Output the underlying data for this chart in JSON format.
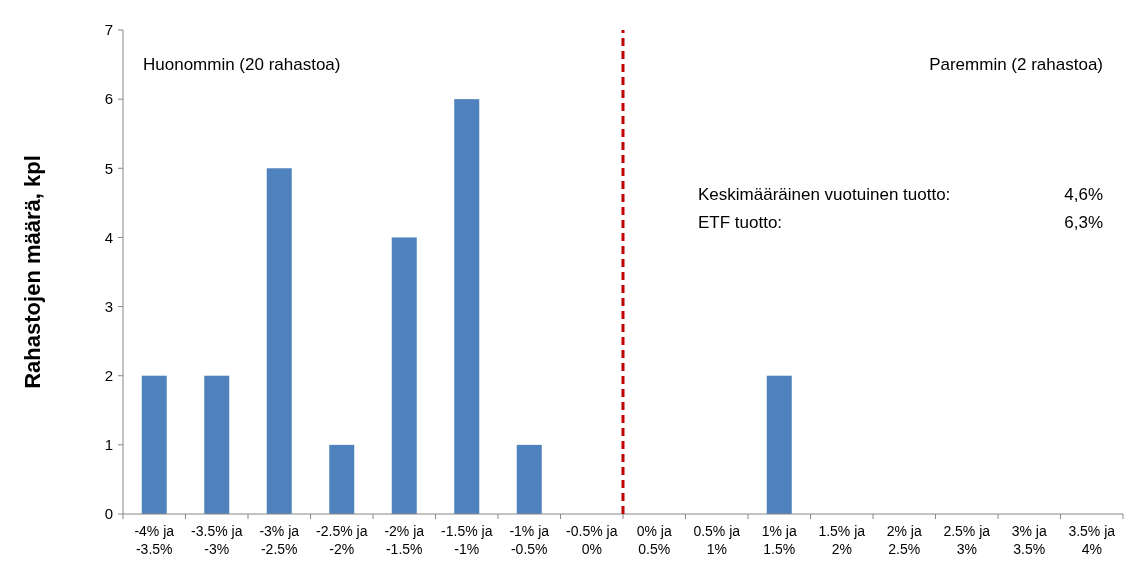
{
  "chart_data": {
    "type": "bar",
    "ylabel": "Rahastojen määrä, kpl",
    "categories": [
      "-4% ja -3.5%",
      "-3.5% ja -3%",
      "-3% ja -2.5%",
      "-2.5% ja -2%",
      "-2% ja -1.5%",
      "-1.5% ja -1%",
      "-1% ja -0.5%",
      "-0.5% ja 0%",
      "0% ja 0.5%",
      "0.5% ja 1%",
      "1% ja 1.5%",
      "1.5% ja 2%",
      "2% ja 2.5%",
      "2.5% ja 3%",
      "3% ja 3.5%",
      "3.5% ja 4%"
    ],
    "values": [
      2,
      2,
      5,
      1,
      4,
      6,
      1,
      0,
      0,
      0,
      2,
      0,
      0,
      0,
      0,
      0
    ],
    "color": "#4f81bd",
    "ylim": [
      0,
      7
    ],
    "yticks": [
      0,
      1,
      2,
      3,
      4,
      5,
      6,
      7
    ],
    "ref_lines": [
      {
        "axis": "x",
        "value": "0% ja 0.5%",
        "label": null,
        "color": "#c00000",
        "line_style": "dashed"
      }
    ],
    "annotations": [
      "Huonommin (20 rahastoa)",
      "Paremmin (2 rahastoa)",
      "Keskimääräinen vuotuinen tuotto:",
      "4,6%",
      "ETF tuotto:",
      "6,3%"
    ]
  }
}
